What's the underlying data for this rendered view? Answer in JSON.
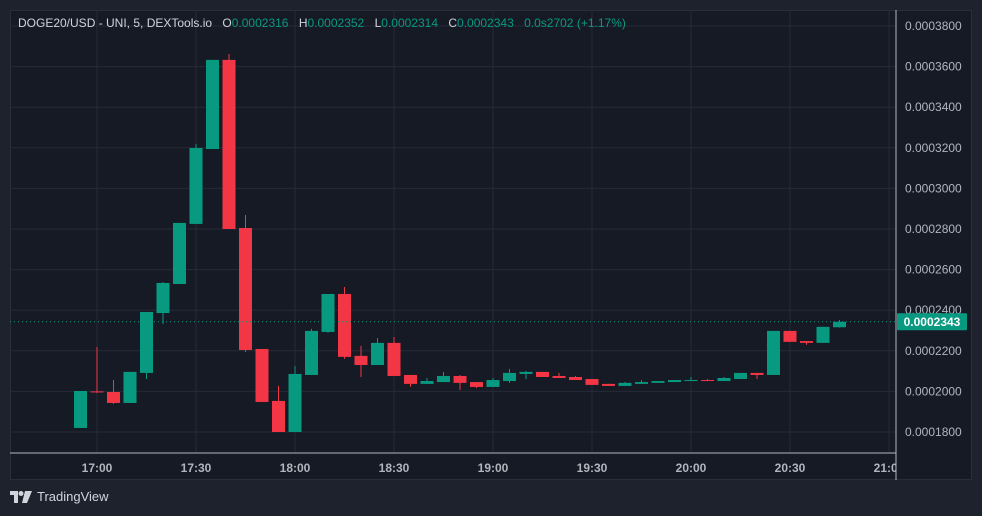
{
  "legend": {
    "symbol": "DOGE20/USD - UNI, 5, DEXTools.io",
    "open_label": "O",
    "open": "0.0002316",
    "high_label": "H",
    "high": "0.0002352",
    "low_label": "L",
    "low": "0.0002314",
    "close_label": "C",
    "close": "0.0002343",
    "volume": "0.0s2702",
    "change": "(+1.17%)"
  },
  "brand": {
    "name": "TradingView",
    "icon": "tradingview-logo-icon"
  },
  "colors": {
    "up": "#089981",
    "down": "#f23645",
    "background": "#161a25",
    "grid": "#262a36",
    "text": "#b2b5be"
  },
  "chart_data": {
    "type": "candlestick",
    "interval_minutes": 5,
    "ylim": [
      0.000174,
      0.000389
    ],
    "yticks": [
      "0.0001800",
      "0.0002000",
      "0.0002200",
      "0.0002400",
      "0.0002600",
      "0.0002800",
      "0.0003000",
      "0.0003200",
      "0.0003400",
      "0.0003600",
      "0.0003800"
    ],
    "xticks": [
      "17:00",
      "17:30",
      "18:00",
      "18:30",
      "19:00",
      "19:30",
      "20:00",
      "20:30",
      "21:00"
    ],
    "last_price": "0.0002343",
    "grid": true,
    "candles_columns": [
      "time",
      "open",
      "high",
      "low",
      "close"
    ],
    "candles": [
      [
        "16:55",
        0.000182,
        0.0002002,
        0.000182,
        0.0002002
      ],
      [
        "17:00",
        0.0002,
        0.0002219,
        0.0001992,
        0.0001995
      ],
      [
        "17:05",
        0.0001997,
        0.0002056,
        0.0001938,
        0.0001943
      ],
      [
        "17:10",
        0.0001943,
        0.0002096,
        0.0001943,
        0.0002096
      ],
      [
        "17:15",
        0.0002091,
        0.0002391,
        0.0002061,
        0.0002391
      ],
      [
        "17:20",
        0.0002386,
        0.0002539,
        0.0002332,
        0.0002534
      ],
      [
        "17:25",
        0.0002529,
        0.000283,
        0.0002529,
        0.000283
      ],
      [
        "17:30",
        0.0002825,
        0.0003219,
        0.0002825,
        0.0003199
      ],
      [
        "17:35",
        0.0003194,
        0.0003633,
        0.0003194,
        0.0003633
      ],
      [
        "17:40",
        0.0003633,
        0.0003662,
        0.00028,
        0.00028
      ],
      [
        "17:45",
        0.0002805,
        0.0002869,
        0.0002194,
        0.0002204
      ],
      [
        "17:50",
        0.0002209,
        0.0002209,
        0.0001948,
        0.0001948
      ],
      [
        "17:55",
        0.0001953,
        0.0002027,
        0.00018,
        0.00018
      ],
      [
        "18:00",
        0.00018,
        0.0002125,
        0.00018,
        0.0002086
      ],
      [
        "18:05",
        0.0002081,
        0.0002308,
        0.0002081,
        0.0002298
      ],
      [
        "18:10",
        0.0002293,
        0.000248,
        0.0002288,
        0.000248
      ],
      [
        "18:15",
        0.000248,
        0.0002514,
        0.000216,
        0.000217
      ],
      [
        "18:20",
        0.0002175,
        0.0002224,
        0.0002071,
        0.000213
      ],
      [
        "18:25",
        0.000213,
        0.0002263,
        0.000213,
        0.0002239
      ],
      [
        "18:30",
        0.0002239,
        0.0002268,
        0.0002076,
        0.0002076
      ],
      [
        "18:35",
        0.0002081,
        0.0002081,
        0.0002022,
        0.0002037
      ],
      [
        "18:40",
        0.0002037,
        0.0002066,
        0.0002037,
        0.0002051
      ],
      [
        "18:45",
        0.0002046,
        0.0002096,
        0.0002046,
        0.0002076
      ],
      [
        "18:50",
        0.0002076,
        0.0002081,
        0.0002007,
        0.0002042
      ],
      [
        "18:55",
        0.0002046,
        0.0002046,
        0.0002017,
        0.0002022
      ],
      [
        "19:00",
        0.0002022,
        0.0002066,
        0.0002022,
        0.0002056
      ],
      [
        "19:05",
        0.0002051,
        0.0002111,
        0.0002042,
        0.0002091
      ],
      [
        "19:10",
        0.0002086,
        0.0002101,
        0.0002061,
        0.0002096
      ],
      [
        "19:15",
        0.0002096,
        0.0002096,
        0.0002071,
        0.0002071
      ],
      [
        "19:20",
        0.0002076,
        0.0002091,
        0.0002066,
        0.0002066
      ],
      [
        "19:25",
        0.0002071,
        0.0002076,
        0.0002056,
        0.0002056
      ],
      [
        "19:30",
        0.0002061,
        0.0002061,
        0.0002032,
        0.0002032
      ],
      [
        "19:35",
        0.0002037,
        0.0002037,
        0.0002027,
        0.0002027
      ],
      [
        "19:40",
        0.0002027,
        0.0002046,
        0.0002027,
        0.0002042
      ],
      [
        "19:45",
        0.0002037,
        0.0002056,
        0.0002037,
        0.0002046
      ],
      [
        "19:50",
        0.0002042,
        0.0002051,
        0.0002042,
        0.0002051
      ],
      [
        "19:55",
        0.0002046,
        0.0002056,
        0.0002046,
        0.0002056
      ],
      [
        "20:00",
        0.0002051,
        0.0002071,
        0.0002051,
        0.0002056
      ],
      [
        "20:05",
        0.0002056,
        0.0002061,
        0.0002051,
        0.0002051
      ],
      [
        "20:10",
        0.0002051,
        0.0002071,
        0.0002051,
        0.0002066
      ],
      [
        "20:15",
        0.0002061,
        0.0002091,
        0.0002061,
        0.0002091
      ],
      [
        "20:20",
        0.0002091,
        0.0002091,
        0.0002061,
        0.0002081
      ],
      [
        "20:25",
        0.0002081,
        0.0002298,
        0.0002081,
        0.0002298
      ],
      [
        "20:30",
        0.0002298,
        0.0002298,
        0.0002244,
        0.0002244
      ],
      [
        "20:35",
        0.0002248,
        0.0002248,
        0.0002229,
        0.0002239
      ],
      [
        "20:40",
        0.0002239,
        0.0002318,
        0.0002239,
        0.0002318
      ],
      [
        "20:45",
        0.0002316,
        0.0002352,
        0.0002314,
        0.0002343
      ]
    ]
  }
}
